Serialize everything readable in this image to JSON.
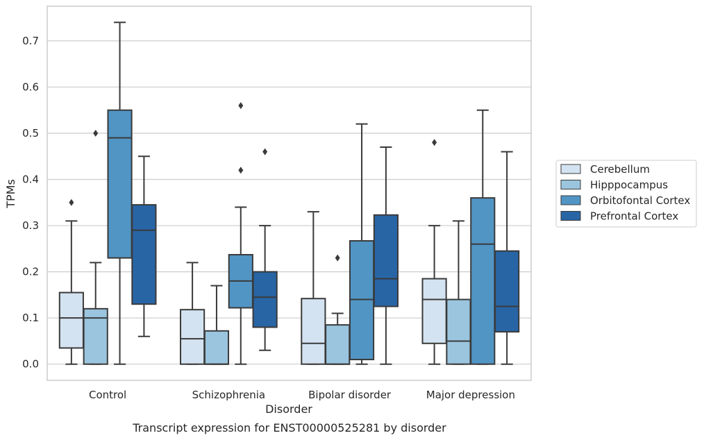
{
  "caption": "Transcript expression for ENST00000525281 by disorder",
  "chart_data": {
    "type": "box",
    "title": "",
    "xlabel": "Disorder",
    "ylabel": "TPMs",
    "ylim": [
      -0.035,
      0.775
    ],
    "yticks": [
      "0.0",
      "0.1",
      "0.2",
      "0.3",
      "0.4",
      "0.5",
      "0.6",
      "0.7"
    ],
    "grid": "horizontal",
    "legend_position": "right",
    "categories": [
      "Control",
      "Schizophrenia",
      "Bipolar disorder",
      "Major depression"
    ],
    "series": [
      {
        "name": "Cerebellum",
        "color": "#d4e3f1",
        "boxes": [
          {
            "whislo": 0.0,
            "q1": 0.035,
            "med": 0.1,
            "q3": 0.155,
            "whishi": 0.31,
            "fliers": [
              0.35
            ]
          },
          {
            "whislo": 0.0,
            "q1": 0.0,
            "med": 0.055,
            "q3": 0.118,
            "whishi": 0.22,
            "fliers": []
          },
          {
            "whislo": 0.0,
            "q1": 0.0,
            "med": 0.045,
            "q3": 0.142,
            "whishi": 0.33,
            "fliers": []
          },
          {
            "whislo": 0.0,
            "q1": 0.045,
            "med": 0.14,
            "q3": 0.185,
            "whishi": 0.3,
            "fliers": [
              0.48
            ]
          }
        ]
      },
      {
        "name": "Hipppocampus",
        "color": "#9bc5de",
        "boxes": [
          {
            "whislo": 0.0,
            "q1": 0.0,
            "med": 0.1,
            "q3": 0.12,
            "whishi": 0.22,
            "fliers": [
              0.5
            ]
          },
          {
            "whislo": 0.0,
            "q1": 0.0,
            "med": 0.0,
            "q3": 0.072,
            "whishi": 0.17,
            "fliers": []
          },
          {
            "whislo": 0.0,
            "q1": 0.0,
            "med": 0.0,
            "q3": 0.085,
            "whishi": 0.11,
            "fliers": [
              0.23
            ]
          },
          {
            "whislo": 0.0,
            "q1": 0.0,
            "med": 0.05,
            "q3": 0.14,
            "whishi": 0.31,
            "fliers": []
          }
        ]
      },
      {
        "name": "Orbitofontal Cortex",
        "color": "#5195c5",
        "boxes": [
          {
            "whislo": 0.0,
            "q1": 0.23,
            "med": 0.49,
            "q3": 0.55,
            "whishi": 0.74,
            "fliers": []
          },
          {
            "whislo": 0.0,
            "q1": 0.122,
            "med": 0.18,
            "q3": 0.237,
            "whishi": 0.34,
            "fliers": [
              0.42,
              0.56
            ]
          },
          {
            "whislo": 0.0,
            "q1": 0.01,
            "med": 0.14,
            "q3": 0.267,
            "whishi": 0.52,
            "fliers": []
          },
          {
            "whislo": 0.0,
            "q1": 0.0,
            "med": 0.26,
            "q3": 0.36,
            "whishi": 0.55,
            "fliers": []
          }
        ]
      },
      {
        "name": "Prefrontal Cortex",
        "color": "#2865a5",
        "boxes": [
          {
            "whislo": 0.06,
            "q1": 0.13,
            "med": 0.29,
            "q3": 0.345,
            "whishi": 0.45,
            "fliers": []
          },
          {
            "whislo": 0.03,
            "q1": 0.08,
            "med": 0.145,
            "q3": 0.2,
            "whishi": 0.3,
            "fliers": [
              0.46
            ]
          },
          {
            "whislo": 0.0,
            "q1": 0.125,
            "med": 0.185,
            "q3": 0.323,
            "whishi": 0.47,
            "fliers": []
          },
          {
            "whislo": 0.0,
            "q1": 0.07,
            "med": 0.125,
            "q3": 0.245,
            "whishi": 0.46,
            "fliers": []
          }
        ]
      }
    ]
  }
}
